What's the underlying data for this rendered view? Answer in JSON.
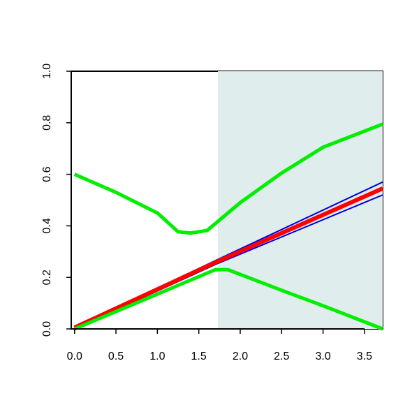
{
  "chart_data": {
    "type": "line",
    "xlim": [
      -0.04,
      3.72
    ],
    "ylim": [
      0,
      1
    ],
    "xticks": [
      {
        "value": 0,
        "label": "0.0"
      },
      0.5,
      {
        "value": 1,
        "label": "1.0"
      },
      1.5,
      {
        "value": 2,
        "label": "2.0"
      },
      2.5,
      {
        "value": 3,
        "label": "3.0"
      },
      3.5
    ],
    "yticks": [
      {
        "value": 0,
        "label": "0.0"
      },
      0.2,
      0.4,
      0.6,
      0.8,
      {
        "value": 1,
        "label": "1.0"
      }
    ],
    "shade_from": 1.73,
    "shade_color": "#e0eded",
    "series": [
      {
        "color": "#0000dd",
        "linewidth": 2,
        "x": [
          0,
          1.7,
          3.72
        ],
        "values": [
          0.005,
          0.265,
          0.57
        ]
      },
      {
        "color": "#0000dd",
        "linewidth": 2,
        "x": [
          0,
          1.7,
          3.72
        ],
        "values": [
          0,
          0.25,
          0.52
        ]
      },
      {
        "color": "#ff0000",
        "linewidth": 6,
        "x": [
          0,
          1.7,
          3.72
        ],
        "values": [
          0.005,
          0.258,
          0.545
        ]
      },
      {
        "color": "#00ee00",
        "linewidth": 5,
        "x": [
          0,
          0.5,
          1.0,
          1.25,
          1.4,
          1.6,
          2.0,
          2.5,
          3.0,
          3.72
        ],
        "values": [
          0.6,
          0.53,
          0.45,
          0.377,
          0.372,
          0.382,
          0.49,
          0.605,
          0.705,
          0.795
        ]
      },
      {
        "color": "#00ee00",
        "linewidth": 5,
        "x": [
          0,
          1.0,
          1.7,
          1.85,
          2.5,
          3.0,
          3.72
        ],
        "values": [
          0,
          0.135,
          0.23,
          0.23,
          0.15,
          0.09,
          0
        ]
      }
    ]
  }
}
